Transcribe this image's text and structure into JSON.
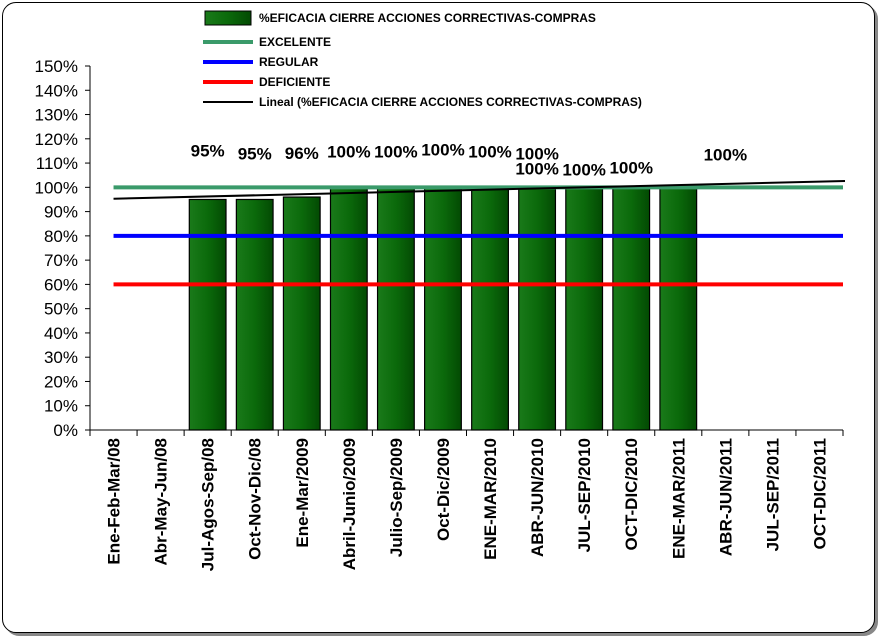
{
  "chart_data": {
    "type": "bar",
    "categories": [
      "Ene-Feb-Mar/08",
      "Abr-May-Jun/08",
      "Jul-Agos-Sep/08",
      "Oct-Nov-Dic/08",
      "Ene-Mar/2009",
      "Abril-Junio/2009",
      "Julio-Sep/2009",
      "Oct-Dic/2009",
      "ENE-MAR/2010",
      "ABR-JUN/2010",
      "JUL-SEP/2010",
      "OCT-DIC/2010",
      "ENE-MAR/2011",
      "ABR-JUN/2011",
      "JUL-SEP/2011",
      "OCT-DIC/2011"
    ],
    "series": [
      {
        "name": "%EFICACIA CIERRE ACCIONES CORRECTIVAS-COMPRAS",
        "type": "bar",
        "color": "#0b5a0b",
        "values": [
          null,
          null,
          95,
          95,
          96,
          100,
          100,
          100,
          100,
          100,
          100,
          100,
          100,
          null,
          null,
          null
        ],
        "data_labels": [
          "",
          "",
          "95%",
          "95%",
          "96%",
          "100%",
          "100%",
          "100%",
          "100%",
          "100%",
          "100%",
          "100%",
          "100%",
          "",
          "",
          ""
        ]
      },
      {
        "name": "EXCELENTE",
        "type": "line",
        "color": "#3a9a6a",
        "value": 100
      },
      {
        "name": "REGULAR",
        "type": "line",
        "color": "#0000ff",
        "value": 80
      },
      {
        "name": "DEFICIENTE",
        "type": "line",
        "color": "#ff0000",
        "value": 60
      },
      {
        "name": "Lineal (%EFICACIA CIERRE ACCIONES CORRECTIVAS-COMPRAS)",
        "type": "trendline",
        "color": "#000000",
        "start_value": 95.3,
        "end_value": 102.6
      }
    ],
    "extra_labels": [
      {
        "category_index": 9,
        "text": "100%"
      }
    ],
    "ylim": [
      0,
      150
    ],
    "yticks": [
      "0%",
      "10%",
      "20%",
      "30%",
      "40%",
      "50%",
      "60%",
      "70%",
      "80%",
      "90%",
      "100%",
      "110%",
      "120%",
      "130%",
      "140%",
      "150%"
    ],
    "legend_position": "top",
    "grid": false
  }
}
